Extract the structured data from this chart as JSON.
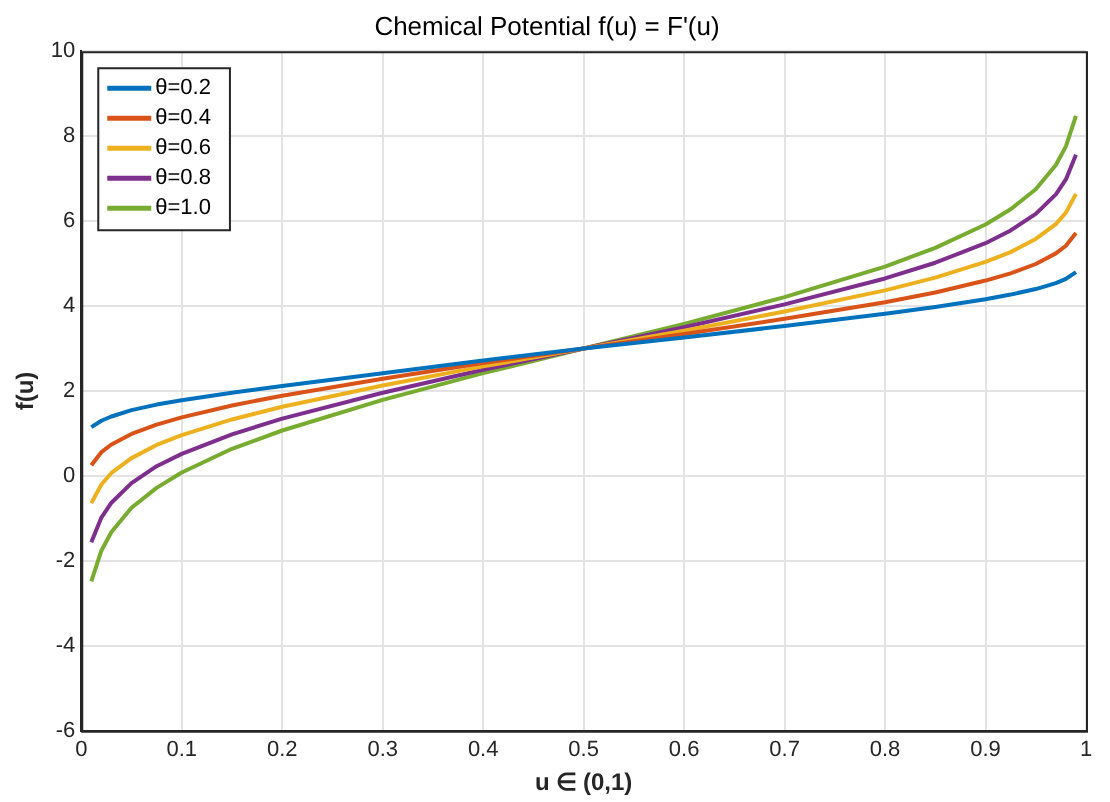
{
  "chart_data": {
    "type": "line",
    "title": "Chemical Potential f(u) = F'(u)",
    "xlabel": "u ∈ (0,1)",
    "ylabel": "f(u)",
    "x": [
      0.01,
      0.02,
      0.03,
      0.05,
      0.075,
      0.1,
      0.15,
      0.2,
      0.3,
      0.4,
      0.5,
      0.6,
      0.7,
      0.8,
      0.85,
      0.9,
      0.925,
      0.95,
      0.97,
      0.98,
      0.99
    ],
    "series": [
      {
        "name": "θ=0.2",
        "color": "#0072bd",
        "values": [
          1.15,
          1.3,
          1.4,
          1.55,
          1.68,
          1.78,
          1.96,
          2.12,
          2.42,
          2.72,
          3,
          3.26,
          3.53,
          3.82,
          3.98,
          4.16,
          4.27,
          4.4,
          4.54,
          4.64,
          4.8
        ]
      },
      {
        "name": "θ=0.4",
        "color": "#d95319",
        "values": [
          0.25,
          0.56,
          0.74,
          0.99,
          1.21,
          1.38,
          1.66,
          1.89,
          2.29,
          2.66,
          3,
          3.34,
          3.7,
          4.09,
          4.32,
          4.6,
          4.77,
          4.99,
          5.24,
          5.42,
          5.72
        ]
      },
      {
        "name": "θ=0.6",
        "color": "#edb120",
        "values": [
          -0.64,
          -0.2,
          0.07,
          0.42,
          0.73,
          0.96,
          1.33,
          1.63,
          2.13,
          2.58,
          3,
          3.42,
          3.87,
          4.37,
          4.67,
          5.04,
          5.27,
          5.58,
          5.93,
          6.2,
          6.64
        ]
      },
      {
        "name": "θ=0.8",
        "color": "#7e2f8e",
        "values": [
          -1.56,
          -0.98,
          -0.63,
          -0.17,
          0.23,
          0.52,
          0.98,
          1.35,
          1.96,
          2.5,
          3,
          3.5,
          4.04,
          4.65,
          5.02,
          5.48,
          5.78,
          6.17,
          6.63,
          6.98,
          7.56
        ]
      },
      {
        "name": "θ=1.0",
        "color": "#77ac30",
        "values": [
          -2.48,
          -1.76,
          -1.32,
          -0.75,
          -0.28,
          0.08,
          0.64,
          1.07,
          1.79,
          2.42,
          3,
          3.58,
          4.21,
          4.93,
          5.37,
          5.92,
          6.28,
          6.75,
          7.32,
          7.76,
          8.48
        ]
      }
    ],
    "xlim": [
      0,
      1
    ],
    "xticks": [
      0,
      0.1,
      0.2,
      0.3,
      0.4,
      0.5,
      0.6,
      0.7,
      0.8,
      0.9,
      1
    ],
    "ylim": [
      -6,
      10
    ],
    "yticks": [
      -6,
      -4,
      -2,
      0,
      2,
      4,
      6,
      8,
      10
    ],
    "grid": true,
    "legend": "top left",
    "marker": "none",
    "line_style": "solid"
  }
}
